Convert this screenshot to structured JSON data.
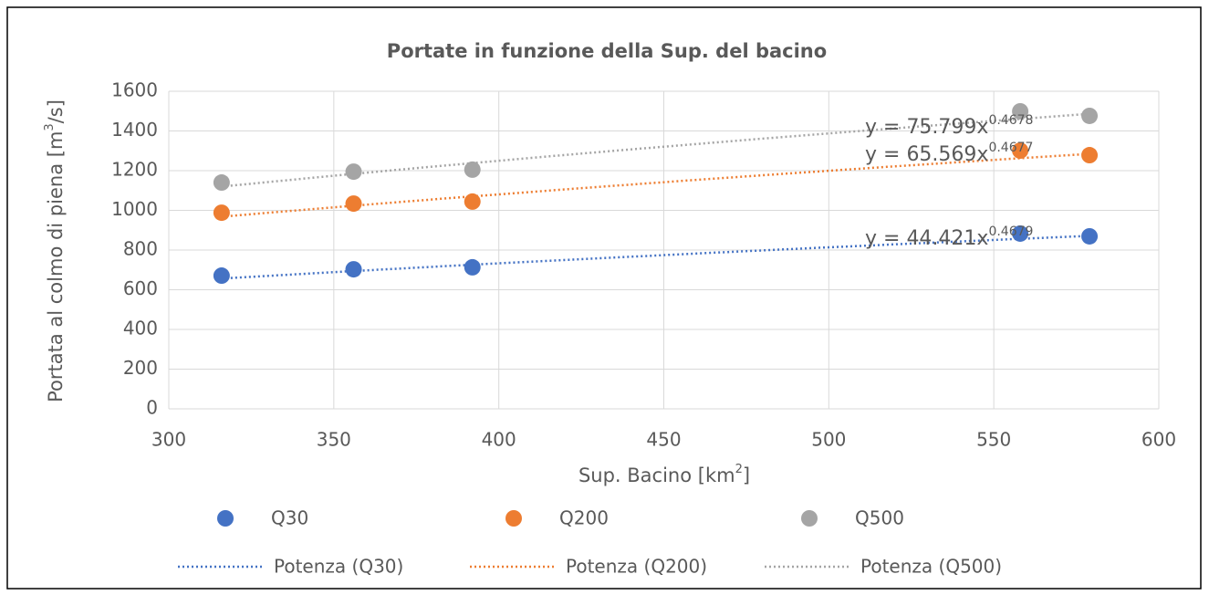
{
  "chart_data": {
    "type": "scatter",
    "title": "Portate in funzione della Sup. del bacino",
    "x_label": [
      "Sup. Bacino [km",
      "2",
      "]"
    ],
    "y_label": [
      "Portata al colmo di piena [m",
      "3",
      "/s]"
    ],
    "xlim": [
      300,
      600
    ],
    "xticks": [
      300,
      350,
      400,
      450,
      500,
      550,
      600
    ],
    "ylim": [
      0,
      1600
    ],
    "yticks": [
      0,
      200,
      400,
      600,
      800,
      1000,
      1200,
      1400,
      1600
    ],
    "grid": true,
    "legend": "bottom",
    "x": [
      316,
      356,
      392,
      558,
      579
    ],
    "series": [
      {
        "name": "Q30",
        "color": "#4472c4",
        "values": [
          671,
          703,
          713,
          883,
          869
        ],
        "trendline": {
          "name": "Potenza (Q30)",
          "coefficient": 44.421,
          "exponent": 0.4679,
          "equation": "y = 44.421x"
        }
      },
      {
        "name": "Q200",
        "color": "#ed7d31",
        "values": [
          988,
          1034,
          1044,
          1301,
          1278
        ],
        "trendline": {
          "name": "Potenza (Q200)",
          "coefficient": 65.569,
          "exponent": 0.4677,
          "equation": "y = 65.569x"
        }
      },
      {
        "name": "Q500",
        "color": "#a5a5a5",
        "values": [
          1140,
          1195,
          1205,
          1499,
          1476
        ],
        "trendline": {
          "name": "Potenza (Q500)",
          "coefficient": 75.799,
          "exponent": 0.4678,
          "equation": "y = 75.799x"
        }
      }
    ]
  }
}
